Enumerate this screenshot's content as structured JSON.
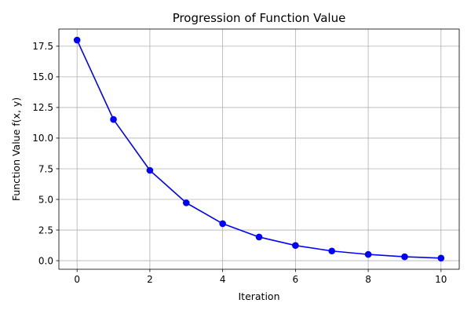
{
  "chart_data": {
    "type": "line",
    "title": "Progression of Function Value",
    "xlabel": "Iteration",
    "ylabel": "Function Value f(x, y)",
    "xlim": [
      -0.5,
      10.5
    ],
    "ylim": [
      -0.7,
      18.9
    ],
    "x_ticks": [
      0,
      2,
      4,
      6,
      8,
      10
    ],
    "x_tick_labels": [
      "0",
      "2",
      "4",
      "6",
      "8",
      "10"
    ],
    "y_ticks": [
      0,
      2.5,
      5,
      7.5,
      10,
      12.5,
      15,
      17.5
    ],
    "y_tick_labels": [
      "0.0",
      "2.5",
      "5.0",
      "7.5",
      "10.0",
      "12.5",
      "15.0",
      "17.5"
    ],
    "grid": true,
    "series": [
      {
        "color": "#0000ff",
        "marker": "circle",
        "x": [
          0,
          1,
          2,
          3,
          4,
          5,
          6,
          7,
          8,
          9,
          10
        ],
        "y": [
          18.0,
          11.52,
          7.37,
          4.72,
          3.02,
          1.93,
          1.24,
          0.79,
          0.51,
          0.32,
          0.21
        ]
      }
    ]
  }
}
